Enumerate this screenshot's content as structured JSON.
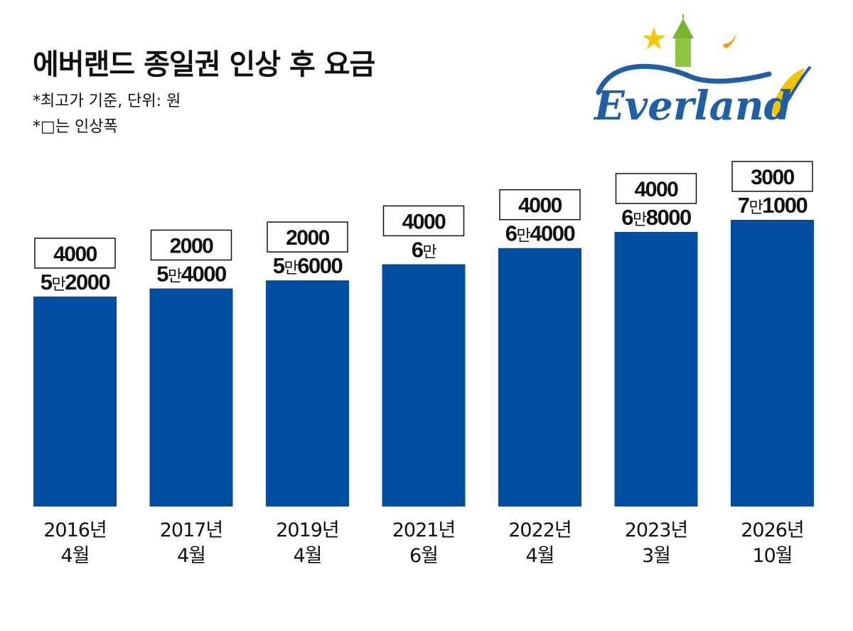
{
  "header": {
    "title": "에버랜드 종일권 인상 후 요금",
    "note1": "*최고가 기준, 단위: 원",
    "note2": "*□는 인상폭"
  },
  "logo": {
    "text": "Everland"
  },
  "colors": {
    "bar": "#004ea2",
    "box_border": "#111111",
    "text": "#111111"
  },
  "chart_data": {
    "type": "bar",
    "categories": [
      [
        "2016년",
        "4월"
      ],
      [
        "2017년",
        "4월"
      ],
      [
        "2019년",
        "4월"
      ],
      [
        "2021년",
        "6월"
      ],
      [
        "2022년",
        "4월"
      ],
      [
        "2023년",
        "3월"
      ],
      [
        "2026년",
        "10월"
      ]
    ],
    "values": [
      52000,
      54000,
      56000,
      60000,
      64000,
      68000,
      71000
    ],
    "value_labels": [
      [
        "5",
        "만",
        "2000"
      ],
      [
        "5",
        "만",
        "4000"
      ],
      [
        "5",
        "만",
        "6000"
      ],
      [
        "6",
        "만",
        ""
      ],
      [
        "6",
        "만",
        "4000"
      ],
      [
        "6",
        "만",
        "8000"
      ],
      [
        "7",
        "만",
        "1000"
      ]
    ],
    "increases": [
      "4000",
      "2000",
      "2000",
      "4000",
      "4000",
      "4000",
      "3000"
    ],
    "ylim": [
      0,
      71000
    ],
    "grid": false,
    "legend": "none"
  }
}
